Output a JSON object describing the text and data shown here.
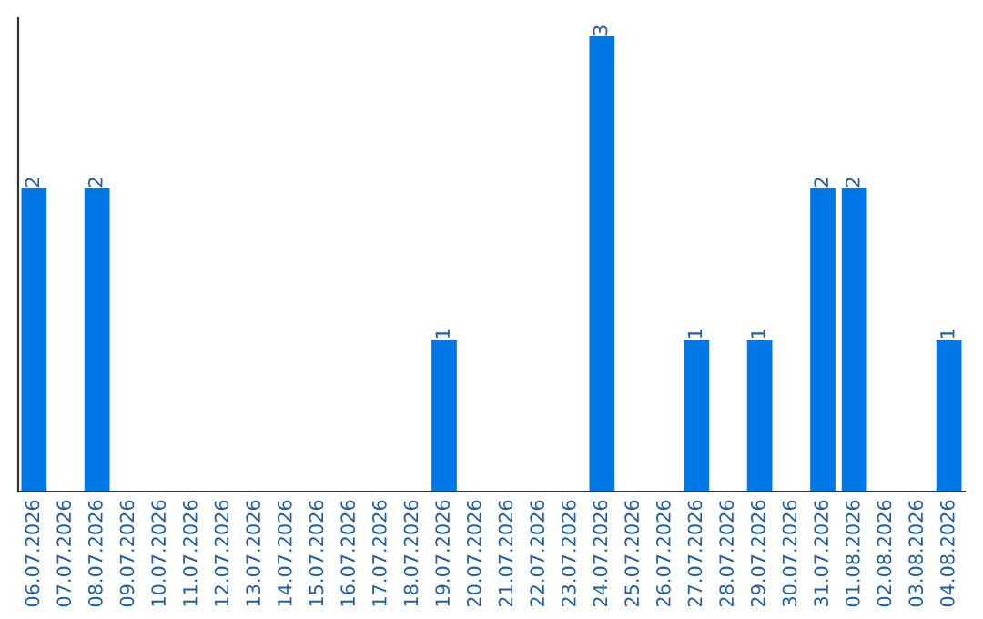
{
  "chart_data": {
    "type": "bar",
    "categories": [
      "06.07.2026",
      "07.07.2026",
      "08.07.2026",
      "09.07.2026",
      "10.07.2026",
      "11.07.2026",
      "12.07.2026",
      "13.07.2026",
      "14.07.2026",
      "15.07.2026",
      "16.07.2026",
      "17.07.2026",
      "18.07.2026",
      "19.07.2026",
      "20.07.2026",
      "21.07.2026",
      "22.07.2026",
      "23.07.2026",
      "24.07.2026",
      "25.07.2026",
      "26.07.2026",
      "27.07.2026",
      "28.07.2026",
      "29.07.2026",
      "30.07.2026",
      "31.07.2026",
      "01.08.2026",
      "02.08.2026",
      "03.08.2026",
      "04.08.2026"
    ],
    "values": [
      2,
      0,
      2,
      0,
      0,
      0,
      0,
      0,
      0,
      0,
      0,
      0,
      0,
      1,
      0,
      0,
      0,
      0,
      3,
      0,
      0,
      1,
      0,
      1,
      0,
      2,
      2,
      0,
      0,
      1
    ],
    "color": "#0077e6",
    "value_labels": [
      "2",
      null,
      "2",
      null,
      null,
      null,
      null,
      null,
      null,
      null,
      null,
      null,
      null,
      "1",
      null,
      null,
      null,
      null,
      "3",
      null,
      null,
      "1",
      null,
      "1",
      null,
      "2",
      "2",
      null,
      null,
      "1"
    ],
    "tick_labels": "x",
    "grid": false,
    "legend": false
  }
}
